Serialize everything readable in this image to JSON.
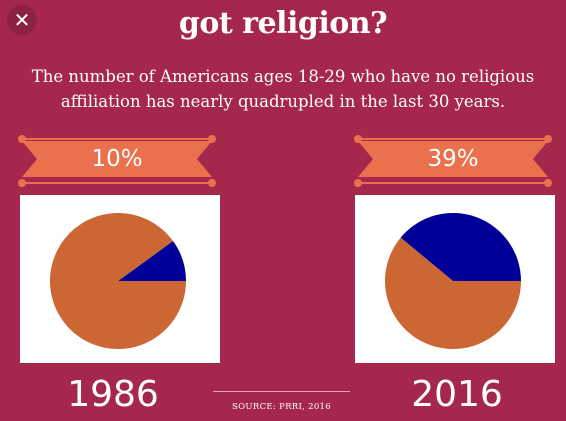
{
  "close_icon": "close-icon",
  "title": "got religion?",
  "subtitle": "The number of Americans ages 18-29 who have no religious affiliation has nearly quadrupled in the last 30 years.",
  "source": "SOURCE: PRRI, 2016",
  "colors": {
    "background": "#a5284c",
    "accent": "#e9714d",
    "pie_main": "#cc6633",
    "pie_highlight": "#000099"
  },
  "chart_data": [
    {
      "type": "pie",
      "year_label": "1986",
      "ribbon_label": "10%",
      "slices": [
        {
          "value": 10,
          "color": "#000099"
        },
        {
          "value": 90,
          "color": "#cc6633"
        }
      ]
    },
    {
      "type": "pie",
      "year_label": "2016",
      "ribbon_label": "39%",
      "slices": [
        {
          "value": 39,
          "color": "#000099"
        },
        {
          "value": 61,
          "color": "#cc6633"
        }
      ]
    }
  ]
}
